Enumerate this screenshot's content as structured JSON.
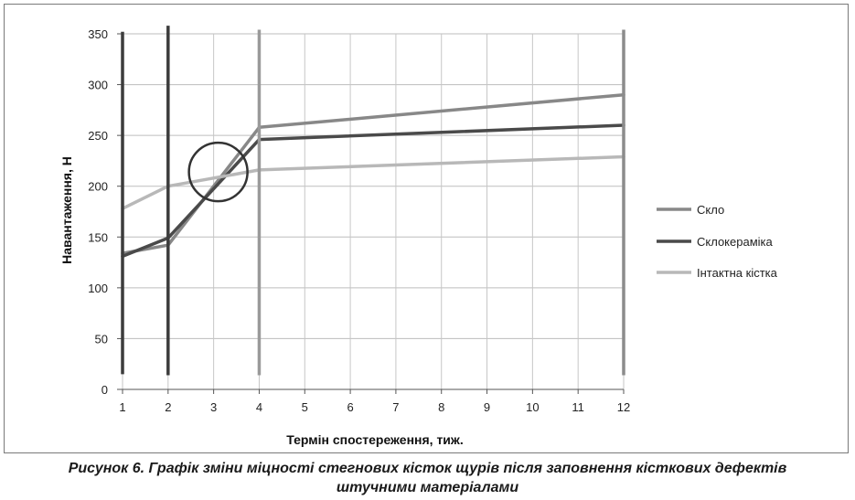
{
  "chart_data": {
    "type": "line",
    "x": [
      1,
      2,
      3,
      4,
      5,
      6,
      7,
      8,
      9,
      10,
      11,
      12
    ],
    "xlabel": "Термін спостереження, тиж.",
    "ylabel": "Навантаження, Н",
    "xlim": [
      1,
      12
    ],
    "ylim": [
      0,
      350
    ],
    "yticks": [
      0,
      50,
      100,
      150,
      200,
      250,
      300,
      350
    ],
    "xticks": [
      1,
      2,
      3,
      4,
      5,
      6,
      7,
      8,
      9,
      10,
      11,
      12
    ],
    "grid": true,
    "legend_position": "right",
    "series": [
      {
        "name": "Скло",
        "color": "#888888",
        "points": [
          [
            1,
            134
          ],
          [
            2,
            142
          ],
          [
            4,
            258
          ],
          [
            12,
            290
          ]
        ]
      },
      {
        "name": "Склокераміка",
        "color": "#4a4a4a",
        "points": [
          [
            1,
            131
          ],
          [
            2,
            149
          ],
          [
            4,
            246
          ],
          [
            12,
            260
          ]
        ]
      },
      {
        "name": "Інтактна кістка",
        "color": "#b8b8b8",
        "points": [
          [
            1,
            178
          ],
          [
            2,
            200
          ],
          [
            4,
            216
          ],
          [
            12,
            229
          ]
        ]
      }
    ],
    "markers": [
      {
        "x": 1,
        "y_top": 352,
        "y_bottom": 15,
        "color": "#3c3c3c"
      },
      {
        "x": 2,
        "y_top": 358,
        "y_bottom": 14,
        "color": "#3c3c3c"
      },
      {
        "x": 4,
        "y_top": 354,
        "y_bottom": 14,
        "color": "#9a9a9a"
      },
      {
        "x": 12,
        "y_top": 354,
        "y_bottom": 14,
        "color": "#8c8c8c"
      }
    ],
    "circle_annotation": {
      "x": 3.1,
      "y": 214,
      "color": "#333333"
    }
  },
  "caption": {
    "line1": "Рисунок 6. Графік зміни міцності стегнових кісток щурів після заповнення кісткових дефектів",
    "line2": "штучними матеріалами"
  }
}
